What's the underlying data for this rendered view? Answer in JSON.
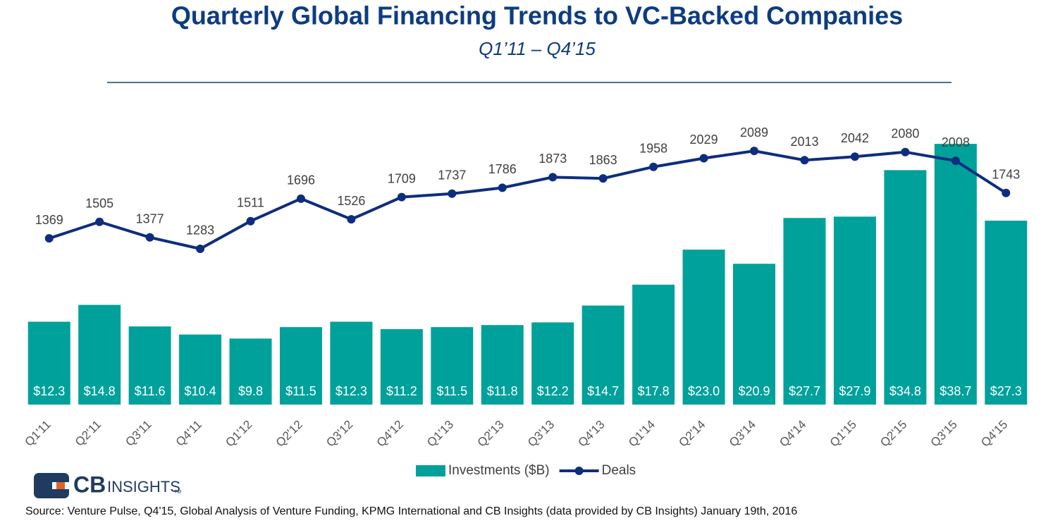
{
  "chart_data": {
    "type": "bar",
    "title": "Quarterly Global Financing Trends to VC-Backed Companies",
    "subtitle": "Q1’11 – Q4’15",
    "categories": [
      "Q1'11",
      "Q2'11",
      "Q3'11",
      "Q4'11",
      "Q1'12",
      "Q2'12",
      "Q3'12",
      "Q4'12",
      "Q1'13",
      "Q2'13",
      "Q3'13",
      "Q4'13",
      "Q1'14",
      "Q2'14",
      "Q3'14",
      "Q4'14",
      "Q1'15",
      "Q2'15",
      "Q3'15",
      "Q4'15"
    ],
    "series": [
      {
        "name": "Investments ($B)",
        "type": "bar",
        "color": "#00a19b",
        "values": [
          12.3,
          14.8,
          11.6,
          10.4,
          9.8,
          11.5,
          12.3,
          11.2,
          11.5,
          11.8,
          12.2,
          14.7,
          17.8,
          23.0,
          20.9,
          27.7,
          27.9,
          34.8,
          38.7,
          27.3
        ],
        "value_labels": [
          "$12.3",
          "$14.8",
          "$11.6",
          "$10.4",
          "$9.8",
          "$11.5",
          "$12.3",
          "$11.2",
          "$11.5",
          "$11.8",
          "$12.2",
          "$14.7",
          "$17.8",
          "$23.0",
          "$20.9",
          "$27.7",
          "$27.9",
          "$34.8",
          "$38.7",
          "$27.3"
        ]
      },
      {
        "name": "Deals",
        "type": "line",
        "axis": "y2",
        "color": "#0e2d7e",
        "values": [
          1369,
          1505,
          1377,
          1283,
          1511,
          1696,
          1526,
          1709,
          1737,
          1786,
          1873,
          1863,
          1958,
          2029,
          2089,
          2013,
          2042,
          2080,
          2008,
          1743
        ]
      }
    ],
    "ylim": [
      0,
      43
    ],
    "y2lim": [
      0,
      2386
    ],
    "legend": "bottom"
  },
  "logo": {
    "mark": "CB",
    "text": "INSIGHTS",
    "tm": "TM"
  },
  "source": "Source: Venture Pulse, Q4'15, Global Analysis of Venture Funding, KPMG International and CB Insights (data provided by CB Insights) January 19th, 2016"
}
